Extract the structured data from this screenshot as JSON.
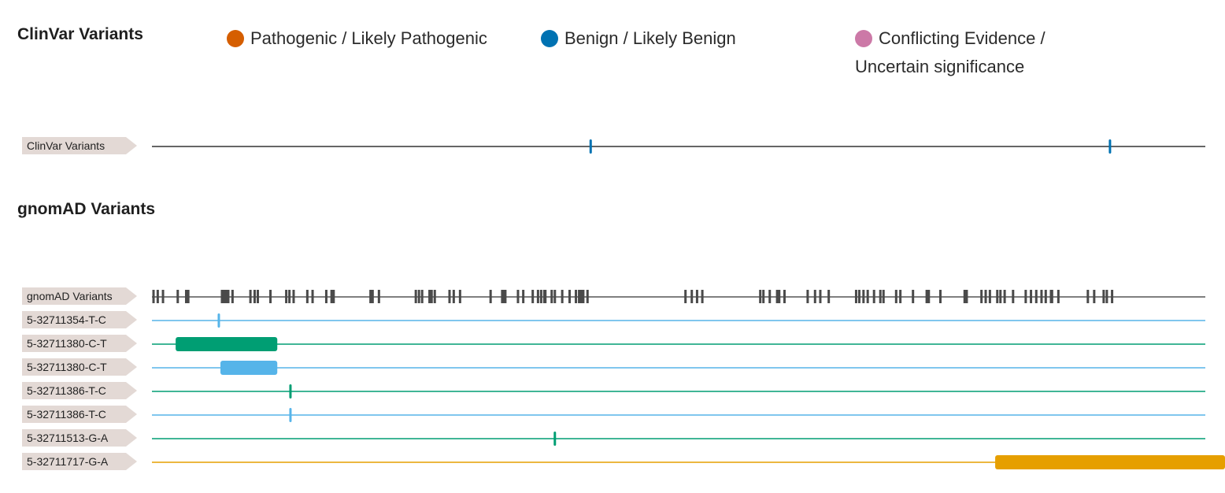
{
  "clinvar_section": {
    "title": "ClinVar Variants",
    "legend": [
      {
        "label": "Pathogenic / Likely Pathogenic",
        "color": "#d55e00"
      },
      {
        "label": "Benign / Likely Benign",
        "color": "#0072b2"
      },
      {
        "label_line1": "Conflicting Evidence /",
        "label_line2": "Uncertain significance",
        "color": "#cc79a7"
      }
    ],
    "track_label": "ClinVar Variants",
    "line_color": "#333333",
    "marker_color": "#0072b2",
    "marker_fractions": [
      0.4165,
      0.9095
    ]
  },
  "gnomad_section": {
    "title": "gnomAD Variants",
    "track_label": "gnomAD Variants",
    "line_color": "#555555",
    "tick_color": "#4a4a4a",
    "tick_fractions": [
      0.0015,
      0.0055,
      0.0105,
      0.0245,
      0.0325,
      0.0335,
      0.0345,
      0.0665,
      0.0685,
      0.0705,
      0.0725,
      0.0765,
      0.0935,
      0.0975,
      0.1005,
      0.1125,
      0.1275,
      0.1305,
      0.1345,
      0.1475,
      0.1525,
      0.1655,
      0.1705,
      0.1725,
      0.2075,
      0.2095,
      0.2155,
      0.2505,
      0.2535,
      0.2565,
      0.2635,
      0.2655,
      0.2685,
      0.2825,
      0.2865,
      0.2925,
      0.3215,
      0.3325,
      0.3335,
      0.3355,
      0.3475,
      0.3525,
      0.3615,
      0.3665,
      0.3695,
      0.3725,
      0.3735,
      0.3795,
      0.3825,
      0.3895,
      0.3965,
      0.4025,
      0.4055,
      0.4075,
      0.4095,
      0.4135,
      0.5065,
      0.5125,
      0.5175,
      0.5225,
      0.5775,
      0.5805,
      0.5865,
      0.5935,
      0.5955,
      0.6005,
      0.6225,
      0.6295,
      0.6345,
      0.6425,
      0.6685,
      0.6715,
      0.6755,
      0.6795,
      0.6855,
      0.6915,
      0.6945,
      0.7065,
      0.7105,
      0.7225,
      0.7355,
      0.7375,
      0.7485,
      0.7715,
      0.7735,
      0.7875,
      0.7915,
      0.7955,
      0.8025,
      0.8055,
      0.8095,
      0.8175,
      0.8295,
      0.8345,
      0.8395,
      0.8445,
      0.8485,
      0.8535,
      0.8545,
      0.8605,
      0.8885,
      0.8945,
      0.9035,
      0.9065,
      0.9115
    ]
  },
  "variant_tracks": [
    {
      "label": "5-32711354-T-C",
      "color": "#56b4e9",
      "mark": {
        "type": "tick",
        "start": 0.0635
      }
    },
    {
      "label": "5-32711380-C-T",
      "color": "#009e73",
      "mark": {
        "type": "bar",
        "start": 0.0225,
        "end": 0.119
      }
    },
    {
      "label": "5-32711380-C-T",
      "color": "#56b4e9",
      "mark": {
        "type": "bar",
        "start": 0.065,
        "end": 0.119
      }
    },
    {
      "label": "5-32711386-T-C",
      "color": "#009e73",
      "mark": {
        "type": "tick",
        "start": 0.1315
      }
    },
    {
      "label": "5-32711386-T-C",
      "color": "#56b4e9",
      "mark": {
        "type": "tick",
        "start": 0.1315
      }
    },
    {
      "label": "5-32711513-G-A",
      "color": "#009e73",
      "mark": {
        "type": "tick",
        "start": 0.3825
      }
    },
    {
      "label": "5-32711717-G-A",
      "color": "#e69f00",
      "mark": {
        "type": "bar",
        "start": 0.8005,
        "end": 1.02
      }
    }
  ]
}
